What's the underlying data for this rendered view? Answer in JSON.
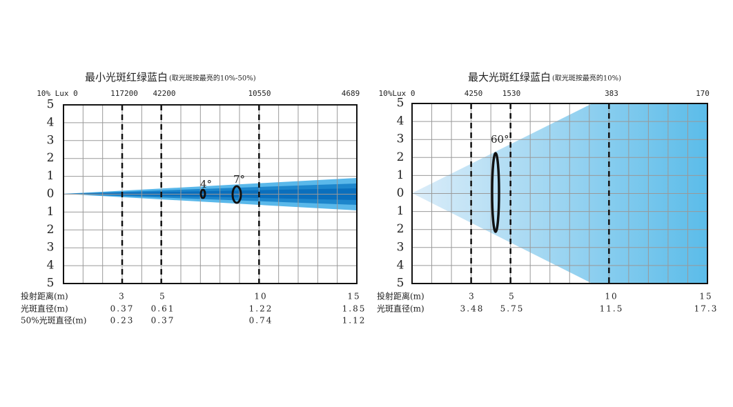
{
  "panels": [
    {
      "title": "最小光斑红绿蓝白",
      "subtitle": "(取光斑按最亮的10%-50%)",
      "top_labels": [
        "10% Lux 0",
        "117200",
        "42200",
        "10550",
        "4689"
      ],
      "y_labels": [
        "5",
        "4",
        "3",
        "2",
        "1",
        "0",
        "1",
        "2",
        "3",
        "4",
        "5"
      ],
      "angles": [
        "4°",
        "7°"
      ],
      "rows": [
        {
          "label": "投射距离(m)",
          "values": [
            "3",
            "5",
            "10",
            "15"
          ]
        },
        {
          "label": "光斑直径(m)",
          "values": [
            "0.37",
            "0.61",
            "1.22",
            "1.85"
          ]
        },
        {
          "label": "50%光斑直径(m)",
          "values": [
            "0.23",
            "0.37",
            "0.74",
            "1.12"
          ]
        }
      ]
    },
    {
      "title": "最大光斑红绿蓝白",
      "subtitle": "(取光斑按最亮的10%)",
      "top_labels": [
        "10%Lux 0",
        "4250",
        "1530",
        "383",
        "170"
      ],
      "y_labels": [
        "5",
        "4",
        "3",
        "2",
        "1",
        "0",
        "1",
        "2",
        "3",
        "4",
        "5"
      ],
      "angles": [
        "60°"
      ],
      "rows": [
        {
          "label": "投射距离(m)",
          "values": [
            "3",
            "5",
            "10",
            "15"
          ]
        },
        {
          "label": "光斑直径(m)",
          "values": [
            "3.48",
            "5.75",
            "11.5",
            "17.3"
          ]
        }
      ]
    }
  ]
}
